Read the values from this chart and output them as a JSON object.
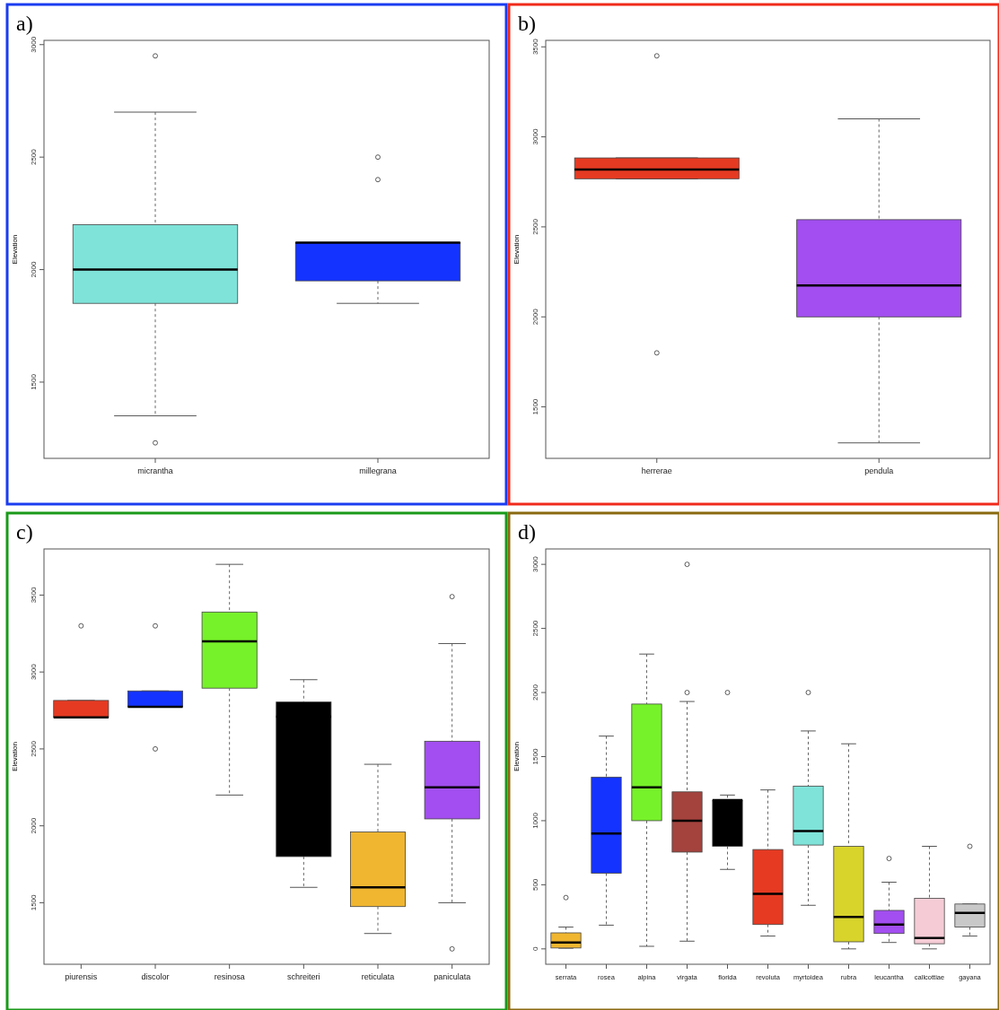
{
  "chart_data": [
    {
      "type": "box",
      "title": "a)",
      "ylabel": "Elevation",
      "categories": [
        "micrantha",
        "millegrana"
      ],
      "colors": [
        "#7fe3d9",
        "#1433ff"
      ],
      "ylim": [
        1161,
        3019
      ],
      "yticks": [
        1500,
        2000,
        2500,
        3000
      ],
      "boxes": [
        {
          "low": 1350,
          "q1": 1850,
          "median": 2000,
          "q3": 2200,
          "high": 2700,
          "outliers": [
            2950,
            1230
          ]
        },
        {
          "low": 1850,
          "q1": 1950,
          "median": 2120,
          "q3": 2120,
          "high": 2120,
          "outliers": [
            2500,
            2400
          ]
        }
      ]
    },
    {
      "type": "box",
      "title": "b)",
      "ylabel": "Elevation",
      "categories": [
        "herrerae",
        "pendula"
      ],
      "colors": [
        "#e63a22",
        "#a24ef0"
      ],
      "ylim": [
        1214,
        3536
      ],
      "yticks": [
        1500,
        2000,
        2500,
        3000,
        3500
      ],
      "boxes": [
        {
          "low": 2767,
          "q1": 2767,
          "median": 2819,
          "q3": 2883,
          "high": 2883,
          "outliers": [
            3450,
            1800
          ]
        },
        {
          "low": 1300,
          "q1": 2000,
          "median": 2175,
          "q3": 2540,
          "high": 3100
        }
      ]
    },
    {
      "type": "box",
      "title": "c)",
      "ylabel": "Elevation",
      "categories": [
        "piurensis",
        "discolor",
        "resinosa",
        "schreiteri",
        "reticulata",
        "paniculata"
      ],
      "colors": [
        "#e63a22",
        "#1433ff",
        "#76f22a",
        "#000000",
        "#f0b630",
        "#a24ef0"
      ],
      "ylim": [
        1100,
        3800
      ],
      "yticks": [
        1500,
        2000,
        2500,
        3000,
        3500
      ],
      "boxes": [
        {
          "low": 2705,
          "q1": 2705,
          "median": 2705,
          "q3": 2815,
          "high": 2815,
          "outliers": [
            3300
          ]
        },
        {
          "low": 2774,
          "q1": 2774,
          "median": 2774,
          "q3": 2877,
          "high": 2877,
          "outliers": [
            3300,
            2500
          ]
        },
        {
          "low": 2200,
          "q1": 2895,
          "median": 3200,
          "q3": 3390,
          "high": 3700
        },
        {
          "low": 1600,
          "q1": 1800,
          "median": 2710,
          "q3": 2805,
          "high": 2950
        },
        {
          "low": 1300,
          "q1": 1475,
          "median": 1600,
          "q3": 1960,
          "high": 2400
        },
        {
          "low": 1500,
          "q1": 2045,
          "median": 2250,
          "q3": 2550,
          "high": 3185,
          "outliers": [
            3490,
            1200
          ]
        }
      ]
    },
    {
      "type": "box",
      "title": "d)",
      "ylabel": "Elevation",
      "categories": [
        "serrata",
        "rosea",
        "alpina",
        "virgata",
        "florida",
        "revoluta",
        "myrtoidea",
        "rubra",
        "leucantha",
        "callcottiae",
        "gayana"
      ],
      "colors": [
        "#f0b630",
        "#1433ff",
        "#76f22a",
        "#a4433e",
        "#000000",
        "#e63a22",
        "#7fe3d9",
        "#d8d42c",
        "#a24ef0",
        "#f5ccd6",
        "#c8c8c8"
      ],
      "ylim": [
        -120,
        3120
      ],
      "yticks": [
        0,
        500,
        1000,
        1500,
        2000,
        2500,
        3000
      ],
      "boxes": [
        {
          "low": 5,
          "q1": 7,
          "median": 50,
          "q3": 125,
          "high": 170,
          "outliers": [
            400
          ]
        },
        {
          "low": 185,
          "q1": 590,
          "median": 900,
          "q3": 1340,
          "high": 1660
        },
        {
          "low": 20,
          "q1": 1000,
          "median": 1260,
          "q3": 1910,
          "high": 2300
        },
        {
          "low": 60,
          "q1": 755,
          "median": 1000,
          "q3": 1225,
          "high": 1930,
          "outliers": [
            3000,
            2000
          ]
        },
        {
          "low": 620,
          "q1": 800,
          "median": 1160,
          "q3": 1160,
          "high": 1200,
          "outliers": [
            2000
          ]
        },
        {
          "low": 100,
          "q1": 190,
          "median": 430,
          "q3": 775,
          "high": 1240
        },
        {
          "low": 340,
          "q1": 810,
          "median": 920,
          "q3": 1270,
          "high": 1700,
          "outliers": [
            2000
          ]
        },
        {
          "low": 0,
          "q1": 55,
          "median": 250,
          "q3": 800,
          "high": 1600
        },
        {
          "low": 50,
          "q1": 120,
          "median": 190,
          "q3": 300,
          "high": 520,
          "outliers": [
            705
          ]
        },
        {
          "low": 0,
          "q1": 40,
          "median": 85,
          "q3": 395,
          "high": 800
        },
        {
          "low": 100,
          "q1": 170,
          "median": 280,
          "q3": 350,
          "high": 350,
          "outliers": [
            800
          ]
        }
      ]
    }
  ]
}
